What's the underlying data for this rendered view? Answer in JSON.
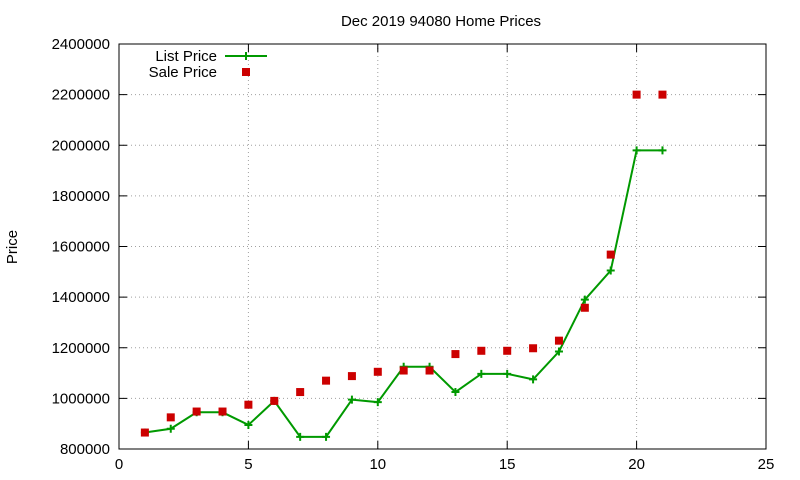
{
  "chart_data": {
    "type": "line",
    "title": "Dec 2019 94080 Home Prices",
    "xlabel": "",
    "ylabel": "Price",
    "xlim": [
      0,
      25
    ],
    "ylim": [
      800000,
      2400000
    ],
    "x_ticks": [
      0,
      5,
      10,
      15,
      20,
      25
    ],
    "y_ticks": [
      800000,
      1000000,
      1200000,
      1400000,
      1600000,
      1800000,
      2000000,
      2200000,
      2400000
    ],
    "x_tick_labels": [
      "0",
      "5",
      "10",
      "15",
      "20",
      "25"
    ],
    "y_tick_labels": [
      "800000",
      "1000000",
      "1200000",
      "1400000",
      "1600000",
      "1800000",
      "2000000",
      "2200000",
      "2400000"
    ],
    "grid": true,
    "legend_position": "top-left",
    "series": [
      {
        "name": "List Price",
        "style": "line-plus",
        "color": "#009900",
        "x": [
          1,
          2,
          3,
          4,
          5,
          6,
          7,
          8,
          9,
          10,
          11,
          12,
          13,
          14,
          15,
          16,
          17,
          18,
          19,
          20,
          21
        ],
        "y": [
          865000,
          880000,
          945000,
          945000,
          895000,
          990000,
          848000,
          848000,
          995000,
          985000,
          1125000,
          1125000,
          1025000,
          1097000,
          1097000,
          1075000,
          1185000,
          1390000,
          1505000,
          1980000,
          1980000
        ]
      },
      {
        "name": "Sale Price",
        "style": "square",
        "color": "#cc0000",
        "x": [
          1,
          2,
          3,
          4,
          5,
          6,
          7,
          8,
          9,
          10,
          11,
          12,
          13,
          14,
          15,
          16,
          17,
          18,
          19,
          20,
          21
        ],
        "y": [
          865000,
          925000,
          948000,
          948000,
          975000,
          990000,
          1025000,
          1070000,
          1088000,
          1105000,
          1110000,
          1110000,
          1175000,
          1188000,
          1188000,
          1198000,
          1228000,
          1358000,
          1568000,
          2200000,
          2200000
        ]
      }
    ]
  }
}
